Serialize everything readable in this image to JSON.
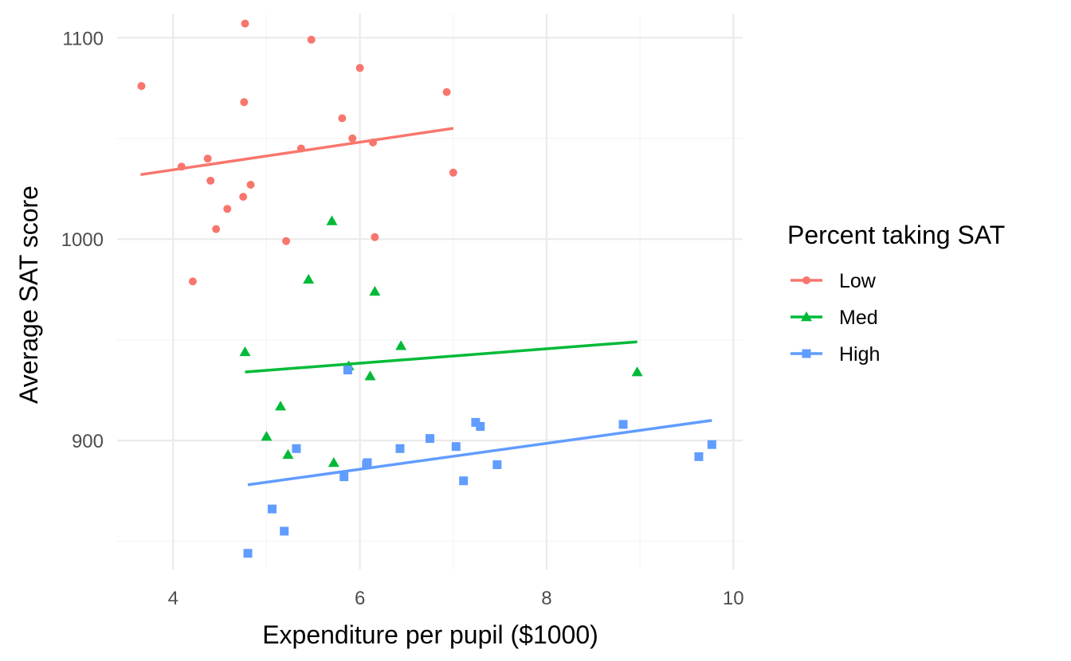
{
  "chart_data": {
    "type": "scatter",
    "title": "",
    "xlabel": "Expenditure per pupil ($1000)",
    "ylabel": "Average SAT score",
    "xlim": [
      3.4,
      10.1
    ],
    "ylim": [
      836,
      1112
    ],
    "x_ticks": [
      4,
      6,
      8,
      10
    ],
    "x_minor": [
      5,
      7,
      9
    ],
    "y_ticks": [
      900,
      1000,
      1100
    ],
    "y_minor": [
      850,
      950,
      1050
    ],
    "grid": true,
    "legend": {
      "title": "Percent taking SAT",
      "position": "right"
    },
    "series": [
      {
        "name": "Low",
        "color": "#F8766D",
        "marker": "circle",
        "points": [
          [
            3.66,
            1076
          ],
          [
            4.09,
            1036
          ],
          [
            4.21,
            979
          ],
          [
            4.37,
            1040
          ],
          [
            4.4,
            1029
          ],
          [
            4.46,
            1005
          ],
          [
            4.58,
            1015
          ],
          [
            4.75,
            1021
          ],
          [
            4.76,
            1068
          ],
          [
            4.77,
            1107
          ],
          [
            4.83,
            1027
          ],
          [
            5.21,
            999
          ],
          [
            5.37,
            1045
          ],
          [
            5.48,
            1099
          ],
          [
            5.81,
            1060
          ],
          [
            5.92,
            1050
          ],
          [
            6.0,
            1085
          ],
          [
            6.14,
            1048
          ],
          [
            6.16,
            1001
          ],
          [
            6.93,
            1073
          ],
          [
            7.0,
            1033
          ]
        ],
        "fit": {
          "x": [
            3.65,
            7.0
          ],
          "y": [
            1032,
            1055
          ]
        }
      },
      {
        "name": "Med",
        "color": "#00BA38",
        "marker": "triangle",
        "points": [
          [
            4.77,
            944
          ],
          [
            5.0,
            902
          ],
          [
            5.15,
            917
          ],
          [
            5.23,
            893
          ],
          [
            5.45,
            980
          ],
          [
            5.7,
            1009
          ],
          [
            5.72,
            889
          ],
          [
            5.88,
            937
          ],
          [
            6.11,
            932
          ],
          [
            6.16,
            974
          ],
          [
            6.44,
            947
          ],
          [
            8.97,
            934
          ]
        ],
        "fit": {
          "x": [
            4.77,
            8.97
          ],
          "y": [
            934,
            949
          ]
        }
      },
      {
        "name": "High",
        "color": "#619CFF",
        "marker": "square",
        "points": [
          [
            4.8,
            844
          ],
          [
            5.06,
            866
          ],
          [
            5.19,
            855
          ],
          [
            5.32,
            896
          ],
          [
            5.83,
            882
          ],
          [
            5.87,
            935
          ],
          [
            6.07,
            888
          ],
          [
            6.08,
            889
          ],
          [
            6.43,
            896
          ],
          [
            6.75,
            901
          ],
          [
            7.03,
            897
          ],
          [
            7.11,
            880
          ],
          [
            7.24,
            909
          ],
          [
            7.29,
            907
          ],
          [
            7.47,
            888
          ],
          [
            8.82,
            908
          ],
          [
            9.63,
            892
          ],
          [
            9.77,
            898
          ]
        ],
        "fit": {
          "x": [
            4.8,
            9.77
          ],
          "y": [
            878,
            910
          ]
        }
      }
    ]
  }
}
